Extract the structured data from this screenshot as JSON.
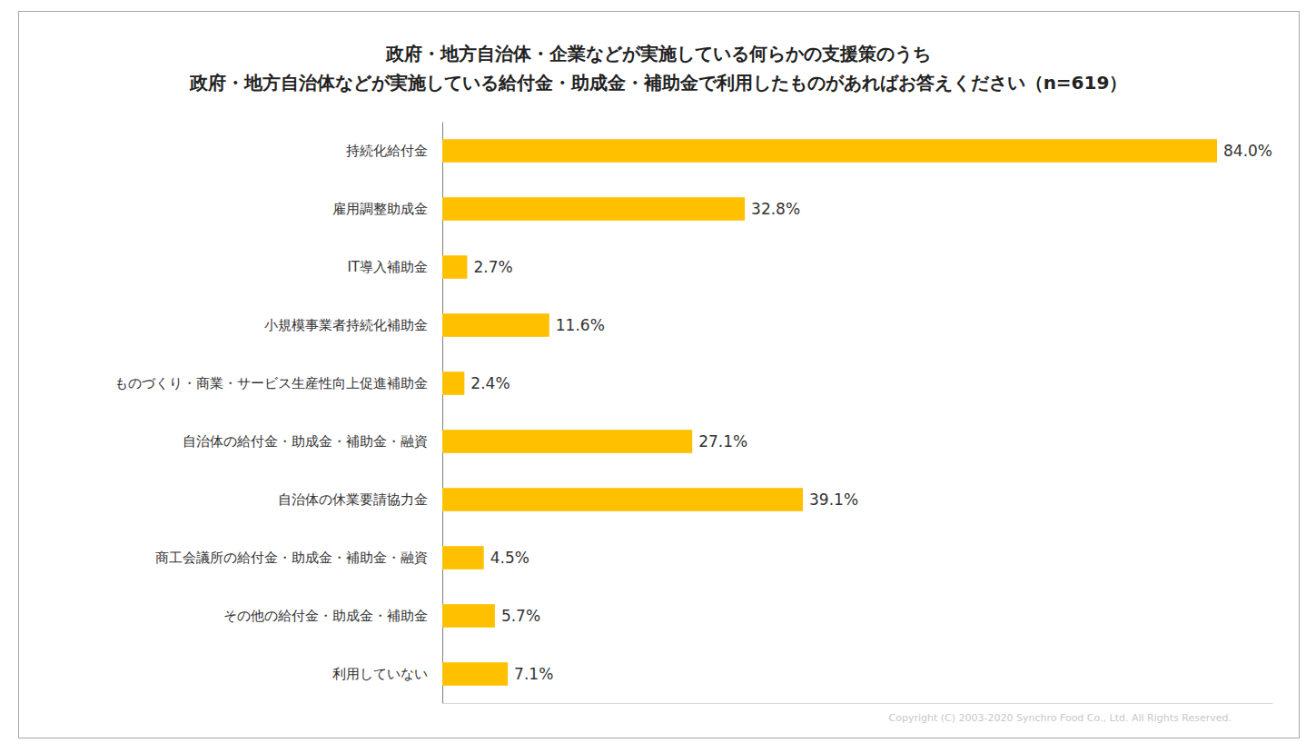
{
  "chart_data": {
    "type": "bar",
    "orientation": "horizontal",
    "title": "政府・地方自治体・企業などが実施している何らかの支援策のうち",
    "subtitle": "政府・地方自治体などが実施している給付金・助成金・補助金で利用したものがあればお答えください（n=619）",
    "categories": [
      "持続化給付金",
      "雇用調整助成金",
      "IT導入補助金",
      "小規模事業者持続化補助金",
      "ものづくり・商業・サービス生産性向上促進補助金",
      "自治体の給付金・助成金・補助金・融資",
      "自治体の休業要請協力金",
      "商工会議所の給付金・助成金・補助金・融資",
      "その他の給付金・助成金・補助金",
      "利用していない"
    ],
    "values": [
      84.0,
      32.8,
      2.7,
      11.6,
      2.4,
      27.1,
      39.1,
      4.5,
      5.7,
      7.1
    ],
    "value_labels": [
      "84.0%",
      "32.8%",
      "2.7%",
      "11.6%",
      "2.4%",
      "27.1%",
      "39.1%",
      "4.5%",
      "5.7%",
      "7.1%"
    ],
    "data_labels": true,
    "color": "#ffc000",
    "xlim": [
      0,
      90
    ],
    "tick_labels": "y",
    "grid": false,
    "annotations": [
      "Copyright (C) 2003-2020  Synchro Food Co., Ltd. All Rights Reserved."
    ]
  }
}
